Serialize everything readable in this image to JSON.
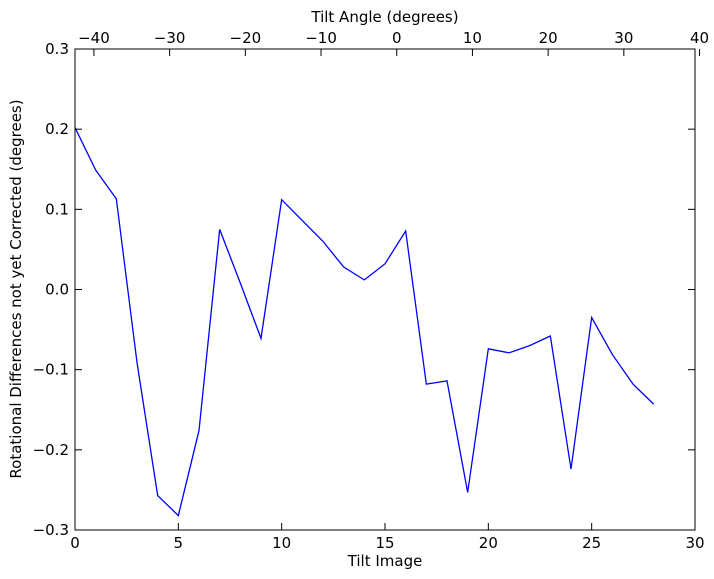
{
  "chart_data": {
    "type": "line",
    "xlabel": "Tilt Image",
    "ylabel": "Rotational Differences not yet Corrected (degrees)",
    "top_xlabel": "Tilt Angle (degrees)",
    "xlim": [
      0,
      30
    ],
    "ylim": [
      -0.3,
      0.3
    ],
    "top_xlim": [
      -42.5,
      39.4
    ],
    "grid": false,
    "line_color": "#0000ff",
    "x_ticks": [
      0,
      5,
      10,
      15,
      20,
      25,
      30
    ],
    "x_tick_labels": [
      "0",
      "5",
      "10",
      "15",
      "20",
      "25",
      "30"
    ],
    "y_ticks": [
      -0.3,
      -0.2,
      -0.1,
      0.0,
      0.1,
      0.2,
      0.3
    ],
    "y_tick_labels": [
      "−0.3",
      "−0.2",
      "−0.1",
      "0.0",
      "0.1",
      "0.2",
      "0.3"
    ],
    "top_ticks": [
      -40,
      -30,
      -20,
      -10,
      0,
      10,
      20,
      30,
      40
    ],
    "top_tick_labels": [
      "−40",
      "−30",
      "−20",
      "−10",
      "0",
      "10",
      "20",
      "30",
      "40"
    ],
    "series": [
      {
        "x": [
          0,
          1,
          2,
          3,
          4,
          5,
          6,
          7,
          8,
          9,
          10,
          11,
          12,
          13,
          14,
          15,
          16,
          17,
          18,
          19,
          20,
          21,
          22,
          23,
          24,
          25,
          26,
          27,
          28
        ],
        "values": [
          0.202,
          0.149,
          0.113,
          -0.091,
          -0.257,
          -0.282,
          -0.176,
          0.075,
          0.008,
          -0.061,
          0.112,
          0.086,
          0.06,
          0.028,
          0.012,
          0.032,
          0.073,
          -0.118,
          -0.114,
          -0.253,
          -0.074,
          -0.079,
          -0.07,
          -0.058,
          -0.224,
          -0.035,
          -0.081,
          -0.118,
          -0.143
        ]
      }
    ]
  }
}
